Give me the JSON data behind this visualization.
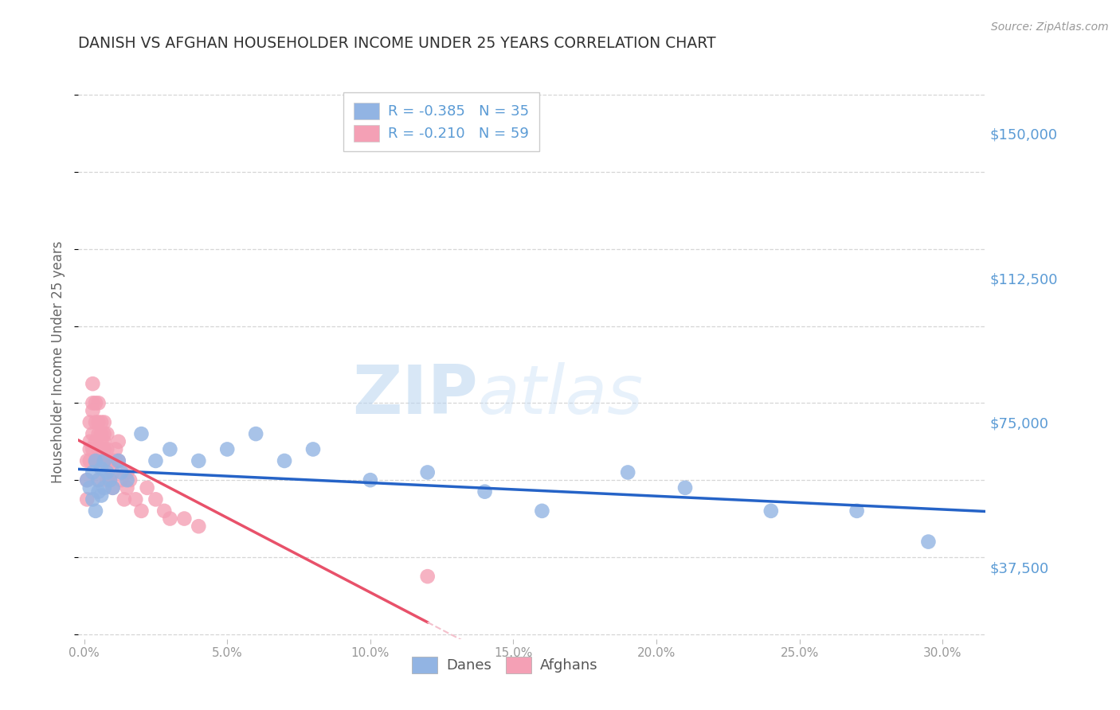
{
  "title": "DANISH VS AFGHAN HOUSEHOLDER INCOME UNDER 25 YEARS CORRELATION CHART",
  "source": "Source: ZipAtlas.com",
  "ylabel": "Householder Income Under 25 years",
  "xlabel_ticks": [
    "0.0%",
    "5.0%",
    "10.0%",
    "15.0%",
    "20.0%",
    "25.0%",
    "30.0%"
  ],
  "xlabel_vals": [
    0.0,
    0.05,
    0.1,
    0.15,
    0.2,
    0.25,
    0.3
  ],
  "ytick_labels": [
    "$37,500",
    "$75,000",
    "$112,500",
    "$150,000"
  ],
  "ytick_vals": [
    37500,
    75000,
    112500,
    150000
  ],
  "ymin": 18750,
  "ymax": 162500,
  "xmin": -0.002,
  "xmax": 0.315,
  "danes_R": -0.385,
  "danes_N": 35,
  "afghans_R": -0.21,
  "afghans_N": 59,
  "danes_color": "#92b4e3",
  "afghans_color": "#f4a0b5",
  "danes_line_color": "#2563c7",
  "afghans_line_color": "#e8516a",
  "afghans_dashed_color": "#f4c0cc",
  "watermark_zip": "ZIP",
  "watermark_atlas": "atlas",
  "background_color": "#ffffff",
  "grid_color": "#cccccc",
  "title_color": "#333333",
  "ytick_color": "#5b9bd5",
  "legend_label_danes": "R = -0.385   N = 35",
  "legend_label_afghans": "R = -0.210   N = 59",
  "danes_x": [
    0.001,
    0.002,
    0.003,
    0.003,
    0.004,
    0.004,
    0.005,
    0.005,
    0.006,
    0.006,
    0.007,
    0.007,
    0.008,
    0.009,
    0.01,
    0.012,
    0.013,
    0.015,
    0.02,
    0.025,
    0.03,
    0.04,
    0.05,
    0.06,
    0.07,
    0.08,
    0.1,
    0.12,
    0.14,
    0.16,
    0.19,
    0.21,
    0.24,
    0.27,
    0.295
  ],
  "danes_y": [
    60000,
    58000,
    62000,
    55000,
    65000,
    52000,
    60000,
    57000,
    63000,
    56000,
    65000,
    58000,
    62000,
    60000,
    58000,
    65000,
    62000,
    60000,
    72000,
    65000,
    68000,
    65000,
    68000,
    72000,
    65000,
    68000,
    60000,
    62000,
    57000,
    52000,
    62000,
    58000,
    52000,
    52000,
    44000
  ],
  "afghans_x": [
    0.001,
    0.001,
    0.001,
    0.002,
    0.002,
    0.002,
    0.002,
    0.003,
    0.003,
    0.003,
    0.003,
    0.003,
    0.004,
    0.004,
    0.004,
    0.004,
    0.005,
    0.005,
    0.005,
    0.005,
    0.005,
    0.005,
    0.006,
    0.006,
    0.006,
    0.006,
    0.006,
    0.007,
    0.007,
    0.007,
    0.007,
    0.007,
    0.008,
    0.008,
    0.008,
    0.008,
    0.009,
    0.009,
    0.01,
    0.01,
    0.01,
    0.011,
    0.011,
    0.012,
    0.012,
    0.013,
    0.014,
    0.015,
    0.015,
    0.016,
    0.018,
    0.02,
    0.022,
    0.025,
    0.028,
    0.03,
    0.035,
    0.04,
    0.12
  ],
  "afghans_y": [
    60000,
    65000,
    55000,
    70000,
    68000,
    75000,
    65000,
    80000,
    78000,
    72000,
    68000,
    85000,
    75000,
    70000,
    80000,
    65000,
    68000,
    72000,
    65000,
    60000,
    75000,
    80000,
    70000,
    65000,
    72000,
    68000,
    75000,
    70000,
    65000,
    72000,
    68000,
    75000,
    65000,
    60000,
    68000,
    72000,
    65000,
    60000,
    65000,
    58000,
    62000,
    68000,
    65000,
    70000,
    65000,
    60000,
    55000,
    62000,
    58000,
    60000,
    55000,
    52000,
    58000,
    55000,
    52000,
    50000,
    50000,
    48000,
    35000
  ]
}
